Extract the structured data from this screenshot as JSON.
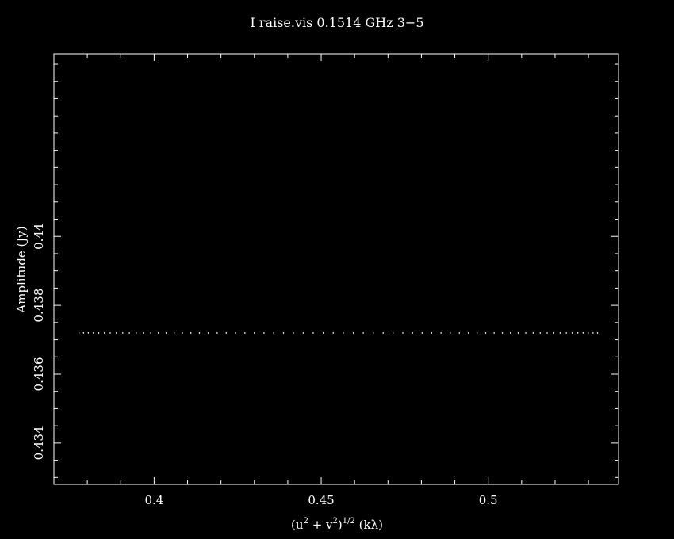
{
  "chart_data": {
    "type": "scatter",
    "title": "I raise.vis 0.1514 GHz   3−5",
    "xlabel": {
      "base": "(u",
      "sup1": "2",
      "mid": " + v",
      "sup2": "2",
      "close": ")",
      "sup3": "1/2",
      "unit": " (kλ)"
    },
    "ylabel": "Amplitude (Jy)",
    "xlim": [
      0.37,
      0.539
    ],
    "ylim": [
      0.4328,
      0.4453
    ],
    "x_major_ticks": [
      0.4,
      0.45,
      0.5
    ],
    "x_tick_labels": [
      "0.4",
      "0.45",
      "0.5"
    ],
    "x_minor_step": 0.01,
    "y_major_ticks": [
      0.434,
      0.436,
      0.438,
      0.44
    ],
    "y_tick_labels": [
      "0.434",
      "0.436",
      "0.438",
      "0.44"
    ],
    "y_minor_step": 0.0005,
    "grid": false,
    "color": "#ffffff",
    "y_value": 0.4372,
    "x_start": 0.3775,
    "x_end": 0.5327,
    "n_points": 66
  }
}
